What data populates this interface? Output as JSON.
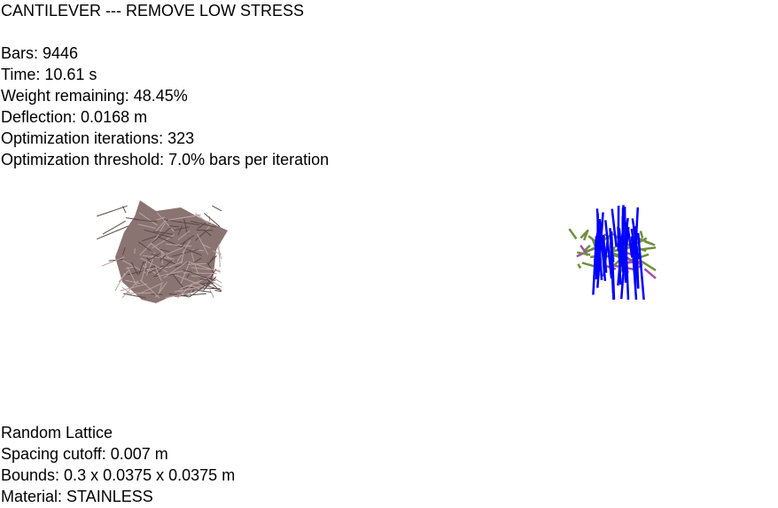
{
  "header": {
    "title": "CANTILEVER --- REMOVE LOW STRESS"
  },
  "stats": {
    "bars": "Bars: 9446",
    "time": "Time: 10.61 s",
    "weight_remaining": "Weight remaining: 48.45%",
    "deflection": "Deflection: 0.0168 m",
    "iterations": "Optimization iterations: 323",
    "threshold": "Optimization threshold: 7.0% bars per iteration"
  },
  "lattice_info": {
    "type": "Random Lattice",
    "spacing_cutoff": "Spacing cutoff: 0.007 m",
    "bounds": "Bounds: 0.3 x 0.0375 x 0.0375 m",
    "material": "Material: STAINLESS"
  },
  "colors": {
    "background": "#ffffff",
    "text": "#000000",
    "lattice_brown": "#8a7472",
    "lattice_brown_dark": "#5a4848",
    "stress_blue": "#0000ff",
    "stress_green": "#6f8f3a",
    "stress_purple": "#a24fb0"
  }
}
